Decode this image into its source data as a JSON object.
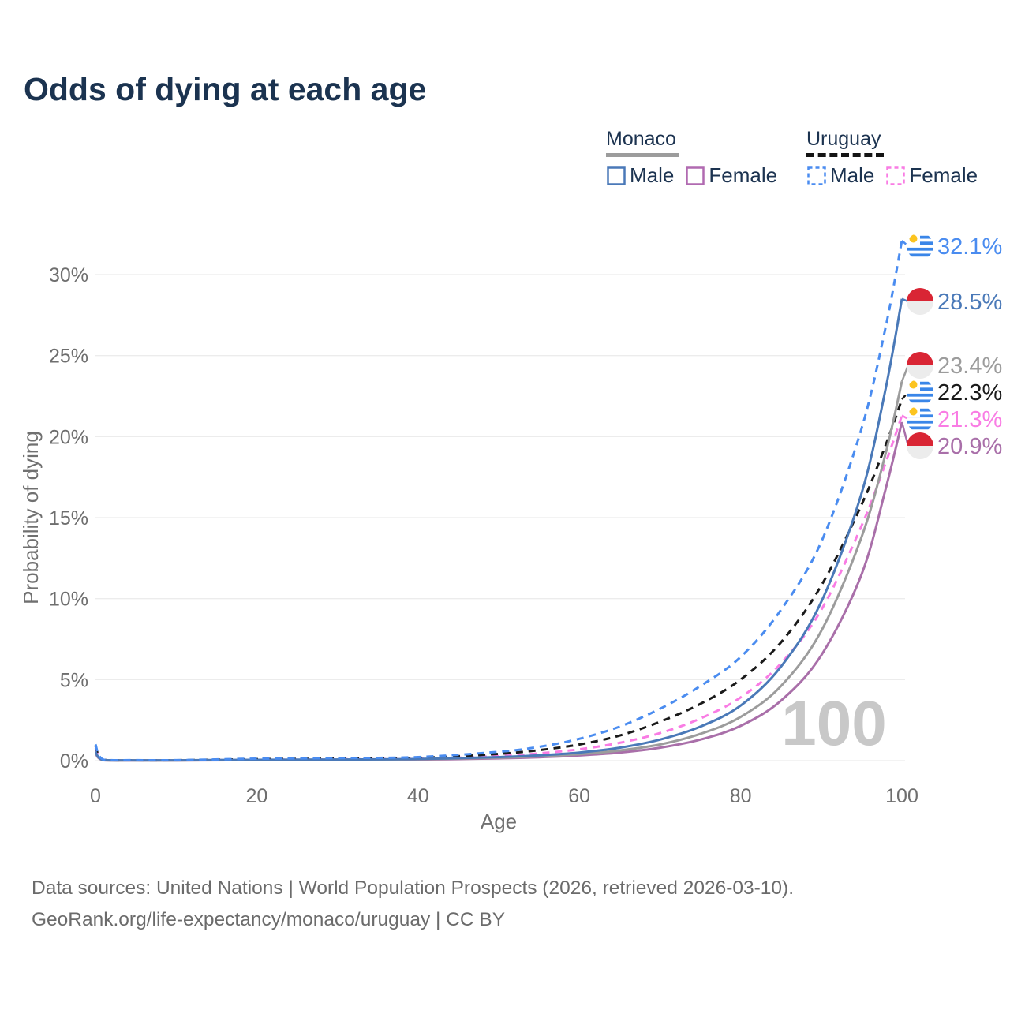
{
  "title": "Odds of dying at each age",
  "legend": {
    "groups": [
      {
        "country": "Monaco",
        "line_style": "solid",
        "line_color": "#9c9c9c",
        "items": [
          {
            "label": "Male",
            "color": "#4a79b8",
            "dashed": false
          },
          {
            "label": "Female",
            "color": "#b16ab1",
            "dashed": false
          }
        ]
      },
      {
        "country": "Uruguay",
        "line_style": "dashed",
        "line_color": "#141414",
        "items": [
          {
            "label": "Male",
            "color": "#4a8cf0",
            "dashed": true
          },
          {
            "label": "Female",
            "color": "#f97ce4",
            "dashed": true
          }
        ]
      }
    ]
  },
  "footer": {
    "line1": "Data sources: United Nations | World Population Prospects (2026, retrieved 2026-03-10).",
    "line2": "GeoRank.org/life-expectancy/monaco/uruguay | CC BY"
  },
  "chart_data": {
    "type": "line",
    "title": "Odds of dying at each age",
    "xlabel": "Age",
    "ylabel": "Probability of dying",
    "xlim": [
      0,
      100
    ],
    "ylim": [
      0,
      30
    ],
    "x_ticks": [
      0,
      20,
      40,
      60,
      80,
      100
    ],
    "y_ticks": [
      0,
      5,
      10,
      15,
      20,
      25,
      30
    ],
    "y_tick_suffix": "%",
    "grid": "horizontal",
    "legend_position": "top-right",
    "watermark": "100",
    "ages": [
      0,
      1,
      5,
      10,
      20,
      30,
      40,
      50,
      55,
      60,
      65,
      70,
      75,
      80,
      85,
      90,
      95,
      98,
      100
    ],
    "series": [
      {
        "id": "uruguay-male",
        "country": "Uruguay",
        "sex": "Male",
        "color": "#4a8cf0",
        "dashed": true,
        "flag": "uruguay",
        "end_label": "32.1%",
        "end_value": 32.1,
        "values": [
          1.0,
          0.06,
          0.03,
          0.03,
          0.12,
          0.16,
          0.22,
          0.55,
          0.85,
          1.35,
          2.1,
          3.2,
          4.6,
          6.4,
          9.3,
          13.5,
          20.5,
          26.8,
          32.1
        ]
      },
      {
        "id": "monaco-male",
        "country": "Monaco",
        "sex": "Male",
        "color": "#4a79b8",
        "dashed": false,
        "flag": "monaco",
        "end_label": "28.5%",
        "end_value": 28.5,
        "values": [
          0.55,
          0.035,
          0.02,
          0.02,
          0.05,
          0.07,
          0.1,
          0.22,
          0.33,
          0.5,
          0.8,
          1.3,
          2.1,
          3.4,
          5.8,
          9.8,
          16.5,
          23.0,
          28.5
        ]
      },
      {
        "id": "monaco-both",
        "country": "Monaco",
        "sex": "Both sexes",
        "color": "#9c9c9c",
        "dashed": false,
        "flag": "monaco",
        "end_label": "23.4%",
        "end_value": 23.4,
        "values": [
          0.5,
          0.03,
          0.015,
          0.015,
          0.04,
          0.06,
          0.09,
          0.18,
          0.27,
          0.4,
          0.63,
          1.0,
          1.65,
          2.7,
          4.6,
          8.0,
          13.8,
          19.0,
          23.4
        ]
      },
      {
        "id": "uruguay-both",
        "country": "Uruguay",
        "sex": "Both sexes",
        "color": "#1a1a1a",
        "dashed": true,
        "flag": "uruguay",
        "end_label": "22.3%",
        "end_value": 22.3,
        "values": [
          0.9,
          0.05,
          0.025,
          0.025,
          0.09,
          0.12,
          0.17,
          0.42,
          0.65,
          1.0,
          1.55,
          2.4,
          3.5,
          5.0,
          7.3,
          10.8,
          15.8,
          19.5,
          22.3
        ]
      },
      {
        "id": "uruguay-female",
        "country": "Uruguay",
        "sex": "Female",
        "color": "#f97ce4",
        "dashed": true,
        "flag": "uruguay",
        "end_label": "21.3%",
        "end_value": 21.3,
        "values": [
          0.8,
          0.04,
          0.02,
          0.02,
          0.05,
          0.08,
          0.12,
          0.28,
          0.45,
          0.7,
          1.1,
          1.7,
          2.6,
          3.9,
          6.0,
          9.3,
          14.5,
          18.4,
          21.3
        ]
      },
      {
        "id": "monaco-female",
        "country": "Monaco",
        "sex": "Female",
        "color": "#a96fa9",
        "dashed": false,
        "flag": "monaco",
        "end_label": "20.9%",
        "end_value": 20.9,
        "values": [
          0.45,
          0.025,
          0.012,
          0.012,
          0.03,
          0.05,
          0.07,
          0.14,
          0.21,
          0.32,
          0.5,
          0.8,
          1.3,
          2.15,
          3.7,
          6.5,
          11.5,
          16.8,
          20.9
        ]
      }
    ],
    "flag_colors": {
      "monaco_red": "#d92534",
      "monaco_white": "#ececec",
      "uruguay_blue": "#3a86e8",
      "uruguay_white": "#ffffff",
      "uruguay_sun": "#fcc41f"
    },
    "style": {
      "grid_color": "#ececec",
      "tick_color": "#6e6e6e",
      "axis_title_color": "#707070",
      "watermark_color": "#c8c8c8"
    }
  }
}
